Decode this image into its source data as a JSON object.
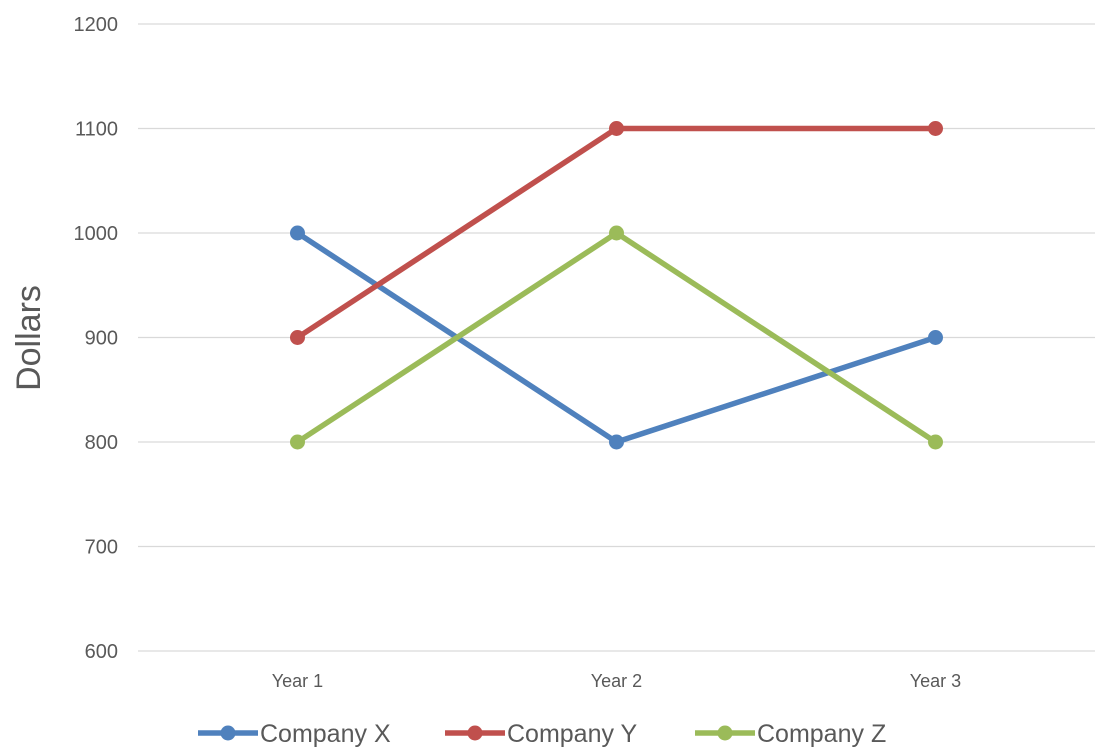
{
  "chart_data": {
    "type": "line",
    "ylabel": "Dollars",
    "xlabel": "",
    "categories": [
      "Year 1",
      "Year 2",
      "Year 3"
    ],
    "ylim": [
      600,
      1200
    ],
    "yticks": [
      600,
      700,
      800,
      900,
      1000,
      1100,
      1200
    ],
    "grid": true,
    "legend_position": "bottom",
    "series": [
      {
        "name": "Company X",
        "values": [
          1000,
          800,
          900
        ],
        "color": "#4F81BD"
      },
      {
        "name": "Company Y",
        "values": [
          900,
          1100,
          1100
        ],
        "color": "#C0504D"
      },
      {
        "name": "Company Z",
        "values": [
          800,
          1000,
          800
        ],
        "color": "#9BBB59"
      }
    ]
  }
}
